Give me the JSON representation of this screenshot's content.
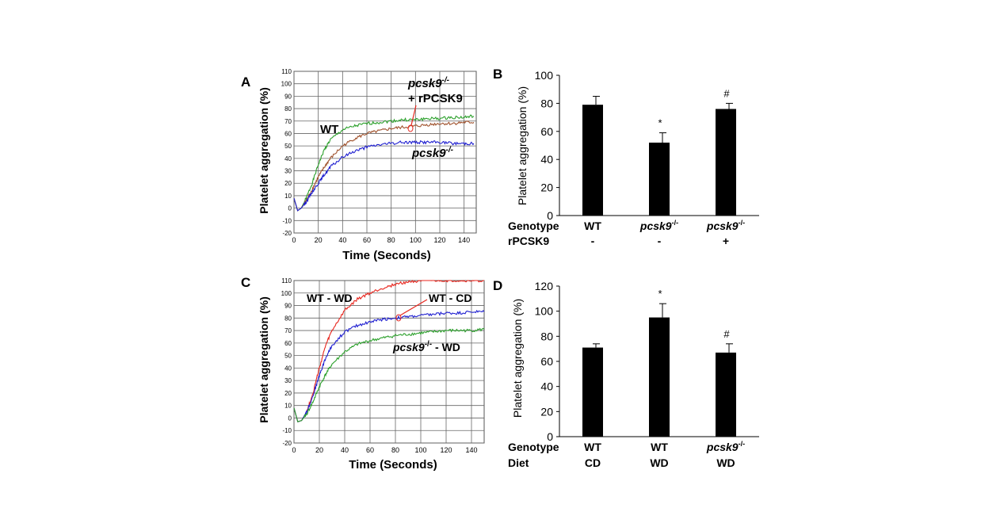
{
  "colors": {
    "wt": "#2ca02c",
    "rescue": "#a0522d",
    "ko": "#1f1fd0",
    "wt_wd": "#e8261e",
    "wt_cd": "#1f1fd0",
    "ko_wd": "#2ca02c",
    "bar": "#000000"
  },
  "chart_data": [
    {
      "panel": "A",
      "type": "line",
      "xlabel": "Time (Seconds)",
      "ylabel": "Platelet aggregation (%)",
      "xlim": [
        0,
        150
      ],
      "ylim": [
        -20,
        110
      ],
      "xticks": [
        "0",
        "20",
        "40",
        "60",
        "80",
        "100",
        "120",
        "140"
      ],
      "yticks": [
        "-20",
        "-10",
        "0",
        "10",
        "20",
        "30",
        "40",
        "50",
        "60",
        "70",
        "80",
        "90",
        "100",
        "110"
      ],
      "grid": true,
      "annotations": [
        "WT",
        "pcsk9-/-",
        "+ rPCSK9",
        "pcsk9-/-"
      ],
      "series": [
        {
          "name": "WT",
          "x": [
            0,
            3,
            6,
            10,
            15,
            20,
            25,
            30,
            40,
            50,
            60,
            70,
            80,
            90,
            100,
            110,
            120,
            130,
            140,
            148
          ],
          "y": [
            8,
            -2,
            0,
            8,
            20,
            35,
            47,
            55,
            63,
            66,
            68,
            69,
            70,
            71,
            71,
            72,
            72,
            73,
            73,
            74
          ]
        },
        {
          "name": "pcsk9-/- + rPCSK9",
          "x": [
            0,
            3,
            6,
            10,
            15,
            20,
            25,
            30,
            40,
            50,
            60,
            70,
            80,
            90,
            100,
            110,
            120,
            130,
            140,
            148
          ],
          "y": [
            8,
            -2,
            0,
            6,
            15,
            25,
            33,
            40,
            50,
            56,
            60,
            62,
            64,
            65,
            66,
            67,
            68,
            68,
            69,
            69
          ]
        },
        {
          "name": "pcsk9-/-",
          "x": [
            0,
            3,
            6,
            10,
            15,
            20,
            25,
            30,
            40,
            50,
            60,
            70,
            80,
            90,
            100,
            110,
            120,
            130,
            140,
            148
          ],
          "y": [
            8,
            -2,
            0,
            5,
            13,
            20,
            27,
            33,
            41,
            46,
            49,
            51,
            52,
            53,
            53,
            53,
            53,
            52,
            52,
            52
          ]
        }
      ]
    },
    {
      "panel": "B",
      "type": "bar",
      "ylabel": "Platelet  aggregation (%)",
      "ylim": [
        0,
        100
      ],
      "yticks": [
        "0",
        "20",
        "40",
        "60",
        "80",
        "100"
      ],
      "rows": [
        {
          "label": "Genotype",
          "values": [
            "WT",
            "pcsk9",
            "pcsk9"
          ],
          "sup": [
            "",
            "-/-",
            "-/-"
          ]
        },
        {
          "label": "rPCSK9",
          "values": [
            "-",
            "-",
            "+"
          ],
          "sup": [
            "",
            "",
            ""
          ]
        }
      ],
      "values": [
        79,
        52,
        76
      ],
      "errors": [
        6,
        7,
        4
      ],
      "markers": [
        "",
        "*",
        "#"
      ]
    },
    {
      "panel": "C",
      "type": "line",
      "xlabel": "Time (Seconds)",
      "ylabel": "Platelet aggregation (%)",
      "xlim": [
        0,
        150
      ],
      "ylim": [
        -20,
        110
      ],
      "xticks": [
        "0",
        "20",
        "40",
        "60",
        "80",
        "100",
        "120",
        "140"
      ],
      "yticks": [
        "-20",
        "-10",
        "0",
        "10",
        "20",
        "30",
        "40",
        "50",
        "60",
        "70",
        "80",
        "90",
        "100",
        "110"
      ],
      "grid": true,
      "annotations": [
        "WT - WD",
        "WT - CD",
        "pcsk9-/- - WD"
      ],
      "series": [
        {
          "name": "WT - WD",
          "x": [
            0,
            3,
            6,
            10,
            15,
            20,
            25,
            30,
            40,
            50,
            60,
            70,
            80,
            90,
            100,
            110,
            120,
            130,
            140,
            150
          ],
          "y": [
            8,
            -3,
            -2,
            5,
            20,
            40,
            58,
            70,
            86,
            95,
            100,
            104,
            107,
            109,
            110,
            110,
            110,
            110,
            110,
            110
          ]
        },
        {
          "name": "WT - CD",
          "x": [
            0,
            3,
            6,
            10,
            15,
            20,
            25,
            30,
            40,
            50,
            60,
            70,
            80,
            90,
            100,
            110,
            120,
            130,
            140,
            150
          ],
          "y": [
            8,
            -3,
            -2,
            5,
            18,
            34,
            48,
            58,
            69,
            74,
            77,
            79,
            80,
            81,
            82,
            83,
            84,
            84,
            85,
            85
          ]
        },
        {
          "name": "pcsk9-/- - WD",
          "x": [
            0,
            3,
            6,
            10,
            15,
            20,
            25,
            30,
            40,
            50,
            60,
            70,
            80,
            90,
            100,
            110,
            120,
            130,
            140,
            150
          ],
          "y": [
            8,
            -3,
            -2,
            3,
            13,
            25,
            35,
            43,
            53,
            59,
            62,
            64,
            66,
            67,
            68,
            69,
            70,
            70,
            70,
            71
          ]
        }
      ]
    },
    {
      "panel": "D",
      "type": "bar",
      "ylabel": "Platelet  aggregation (%)",
      "ylim": [
        0,
        120
      ],
      "yticks": [
        "0",
        "20",
        "40",
        "60",
        "80",
        "100",
        "120"
      ],
      "rows": [
        {
          "label": "Genotype",
          "values": [
            "WT",
            "WT",
            "pcsk9"
          ],
          "sup": [
            "",
            "",
            "-/-"
          ]
        },
        {
          "label": "Diet",
          "values": [
            "CD",
            "WD",
            "WD"
          ],
          "sup": [
            "",
            "",
            ""
          ]
        }
      ],
      "values": [
        71,
        95,
        67
      ],
      "errors": [
        3,
        11,
        7
      ],
      "markers": [
        "",
        "*",
        "#"
      ]
    }
  ],
  "labels": {
    "A": "A",
    "B": "B",
    "C": "C",
    "D": "D"
  }
}
